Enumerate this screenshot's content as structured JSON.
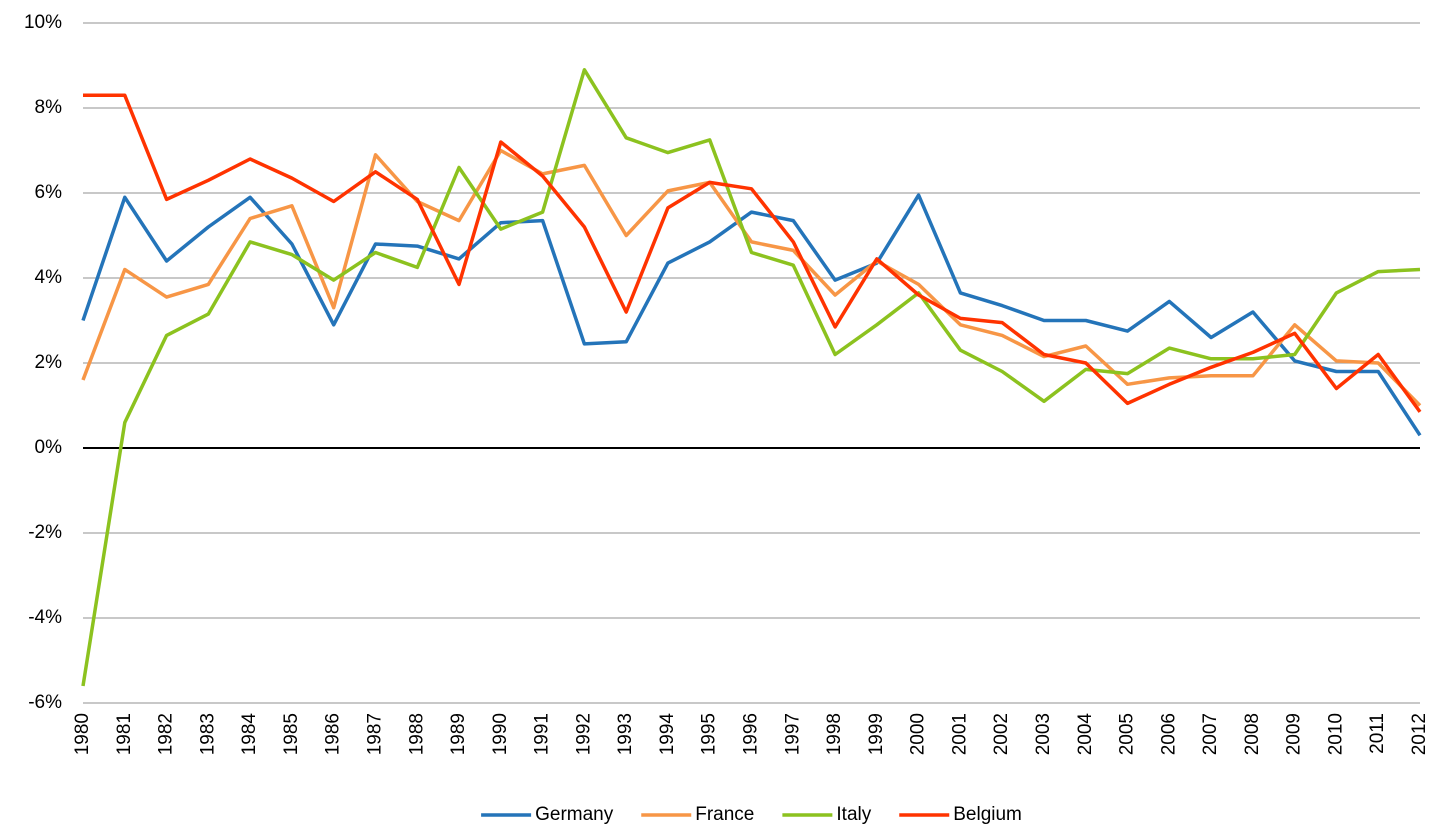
{
  "chart_data": {
    "type": "line",
    "categories": [
      "1980",
      "1981",
      "1982",
      "1983",
      "1984",
      "1985",
      "1986",
      "1987",
      "1988",
      "1989",
      "1990",
      "1991",
      "1992",
      "1993",
      "1994",
      "1995",
      "1996",
      "1997",
      "1998",
      "1999",
      "2000",
      "2001",
      "2002",
      "2003",
      "2004",
      "2005",
      "2006",
      "2007",
      "2008",
      "2009",
      "2010",
      "2011",
      "2012"
    ],
    "series": [
      {
        "name": "Germany",
        "color": "#2474b9",
        "values": [
          3.0,
          5.9,
          4.4,
          5.2,
          5.9,
          4.8,
          2.9,
          4.8,
          4.75,
          4.45,
          5.3,
          5.35,
          2.45,
          2.5,
          4.35,
          4.85,
          5.55,
          5.35,
          3.95,
          4.35,
          5.95,
          3.65,
          3.35,
          3.0,
          3.0,
          2.75,
          3.45,
          2.6,
          3.2,
          2.05,
          1.8,
          1.8,
          0.3
        ]
      },
      {
        "name": "France",
        "color": "#f79646",
        "values": [
          1.6,
          4.2,
          3.55,
          3.85,
          5.4,
          5.7,
          3.3,
          6.9,
          5.8,
          5.35,
          7.0,
          6.45,
          6.65,
          5.0,
          6.05,
          6.25,
          4.85,
          4.65,
          3.6,
          4.4,
          3.85,
          2.9,
          2.65,
          2.15,
          2.4,
          1.5,
          1.65,
          1.7,
          1.7,
          2.9,
          2.05,
          2.0,
          1.0
        ]
      },
      {
        "name": "Italy",
        "color": "#8cc21f",
        "values": [
          -5.6,
          0.6,
          2.65,
          3.15,
          4.85,
          4.55,
          3.95,
          4.6,
          4.25,
          6.6,
          5.15,
          5.55,
          8.9,
          7.3,
          6.95,
          7.25,
          4.6,
          4.3,
          2.2,
          2.9,
          3.65,
          2.3,
          1.8,
          1.1,
          1.85,
          1.75,
          2.35,
          2.1,
          2.1,
          2.2,
          3.65,
          4.15,
          4.2
        ]
      },
      {
        "name": "Belgium",
        "color": "#ff3300",
        "values": [
          8.3,
          8.3,
          5.85,
          6.3,
          6.8,
          6.35,
          5.8,
          6.5,
          5.85,
          3.85,
          7.2,
          6.4,
          5.2,
          3.2,
          5.65,
          6.25,
          6.1,
          4.85,
          2.85,
          4.45,
          3.6,
          3.05,
          2.95,
          2.2,
          2.0,
          1.05,
          1.5,
          1.9,
          2.25,
          2.7,
          1.4,
          2.2,
          0.85
        ]
      }
    ],
    "ylim": [
      -6,
      10
    ],
    "yticks": [
      {
        "value": -6,
        "label": "-6%"
      },
      {
        "value": -4,
        "label": "-4%"
      },
      {
        "value": -2,
        "label": "-2%"
      },
      {
        "value": 0,
        "label": "0%"
      },
      {
        "value": 2,
        "label": "2%"
      },
      {
        "value": 4,
        "label": "4%"
      },
      {
        "value": 6,
        "label": "6%"
      },
      {
        "value": 8,
        "label": "8%"
      },
      {
        "value": 10,
        "label": "10%"
      }
    ],
    "grid": true,
    "legend": "bottom"
  }
}
